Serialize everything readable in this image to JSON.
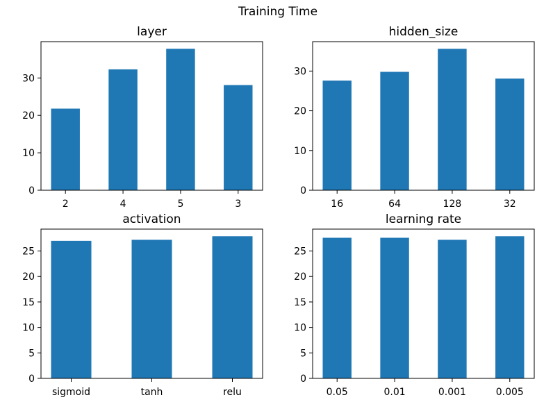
{
  "figure": {
    "suptitle": "Training Time"
  },
  "chart_data": [
    {
      "type": "bar",
      "title": "layer",
      "xlabel": "",
      "ylabel": "",
      "categories": [
        "2",
        "4",
        "5",
        "3"
      ],
      "values": [
        21.8,
        32.3,
        37.8,
        28.1
      ],
      "ylim": [
        0,
        39.7
      ],
      "yticks": [
        0,
        10,
        20,
        30
      ],
      "grid": false,
      "bar_color": "#1f77b4"
    },
    {
      "type": "bar",
      "title": "hidden_size",
      "xlabel": "",
      "ylabel": "",
      "categories": [
        "16",
        "64",
        "128",
        "32"
      ],
      "values": [
        27.6,
        29.8,
        35.6,
        28.1
      ],
      "ylim": [
        0,
        37.4
      ],
      "yticks": [
        0,
        10,
        20,
        30
      ],
      "grid": false,
      "bar_color": "#1f77b4"
    },
    {
      "type": "bar",
      "title": "activation",
      "xlabel": "",
      "ylabel": "",
      "categories": [
        "sigmoid",
        "tanh",
        "relu"
      ],
      "values": [
        27.0,
        27.2,
        27.9
      ],
      "ylim": [
        0,
        29.3
      ],
      "yticks": [
        0,
        5,
        10,
        15,
        20,
        25
      ],
      "grid": false,
      "bar_color": "#1f77b4"
    },
    {
      "type": "bar",
      "title": "learning rate",
      "xlabel": "",
      "ylabel": "",
      "categories": [
        "0.05",
        "0.01",
        "0.001",
        "0.005"
      ],
      "values": [
        27.6,
        27.6,
        27.2,
        27.9
      ],
      "ylim": [
        0,
        29.3
      ],
      "yticks": [
        0,
        5,
        10,
        15,
        20,
        25
      ],
      "grid": false,
      "bar_color": "#1f77b4"
    }
  ]
}
